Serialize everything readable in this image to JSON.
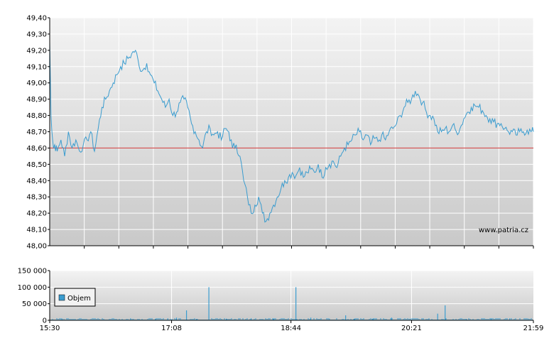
{
  "chart_data": [
    {
      "type": "line",
      "title": "",
      "xlabel": "",
      "ylabel": "",
      "ylim": [
        48.0,
        49.4
      ],
      "y_ticks": [
        "48,00",
        "48,10",
        "48,20",
        "48,30",
        "48,40",
        "48,50",
        "48,60",
        "48,70",
        "48,80",
        "48,90",
        "49,00",
        "49,10",
        "49,20",
        "49,30",
        "49,40"
      ],
      "x_ticks": [
        "15:30",
        "17:08",
        "18:44",
        "20:21",
        "21:59"
      ],
      "reference_line": {
        "value": 48.6,
        "color": "#cc3333"
      },
      "series": [
        {
          "color": "#3a9ccf",
          "x": [
            "15:30",
            "15:31",
            "15:33",
            "15:34",
            "15:36",
            "15:39",
            "15:42",
            "15:45",
            "15:48",
            "15:51",
            "15:54",
            "15:57",
            "16:00",
            "16:03",
            "16:06",
            "16:09",
            "16:12",
            "16:15",
            "16:18",
            "16:21",
            "16:24",
            "16:27",
            "16:30",
            "16:33",
            "16:36",
            "16:39",
            "16:42",
            "16:45",
            "16:48",
            "16:51",
            "16:54",
            "16:57",
            "17:00",
            "17:03",
            "17:06",
            "17:09",
            "17:12",
            "17:15",
            "17:18",
            "17:21",
            "17:24",
            "17:27",
            "17:30",
            "17:33",
            "17:36",
            "17:39",
            "17:42",
            "17:45",
            "17:48",
            "17:51",
            "17:54",
            "17:57",
            "18:00",
            "18:03",
            "18:06",
            "18:09",
            "18:12",
            "18:15",
            "18:18",
            "18:21",
            "18:24",
            "18:27",
            "18:30",
            "18:33",
            "18:36",
            "18:39",
            "18:42",
            "18:45",
            "18:48",
            "18:51",
            "18:54",
            "18:57",
            "19:00",
            "19:03",
            "19:06",
            "19:09",
            "19:12",
            "19:15",
            "19:18",
            "19:21",
            "19:24",
            "19:27",
            "19:30",
            "19:33",
            "19:36",
            "19:39",
            "19:42",
            "19:45",
            "19:48",
            "19:51",
            "19:54",
            "19:57",
            "20:00",
            "20:03",
            "20:06",
            "20:09",
            "20:12",
            "20:15",
            "20:18",
            "20:21",
            "20:24",
            "20:27",
            "20:30",
            "20:33",
            "20:36",
            "20:39",
            "20:42",
            "20:45",
            "20:48",
            "20:51",
            "20:54",
            "20:57",
            "21:00",
            "21:03",
            "21:06",
            "21:09",
            "21:12",
            "21:15",
            "21:18",
            "21:21",
            "21:24",
            "21:27",
            "21:30",
            "21:33",
            "21:36",
            "21:39",
            "21:42",
            "21:45",
            "21:48",
            "21:51",
            "21:54",
            "21:57",
            "21:59"
          ],
          "values": [
            49.25,
            48.8,
            48.6,
            48.62,
            48.58,
            48.65,
            48.55,
            48.7,
            48.6,
            48.65,
            48.58,
            48.62,
            48.65,
            48.7,
            48.58,
            48.72,
            48.85,
            48.9,
            48.95,
            49.0,
            49.05,
            49.1,
            49.12,
            49.15,
            49.18,
            49.2,
            49.1,
            49.08,
            49.12,
            49.05,
            49.0,
            48.95,
            48.9,
            48.85,
            48.9,
            48.8,
            48.82,
            48.88,
            48.9,
            48.85,
            48.75,
            48.7,
            48.65,
            48.6,
            48.7,
            48.72,
            48.68,
            48.7,
            48.65,
            48.72,
            48.7,
            48.6,
            48.62,
            48.55,
            48.4,
            48.3,
            48.2,
            48.25,
            48.3,
            48.2,
            48.15,
            48.2,
            48.25,
            48.3,
            48.35,
            48.4,
            48.42,
            48.45,
            48.43,
            48.48,
            48.42,
            48.45,
            48.47,
            48.45,
            48.5,
            48.42,
            48.48,
            48.5,
            48.52,
            48.48,
            48.55,
            48.6,
            48.62,
            48.65,
            48.68,
            48.7,
            48.65,
            48.68,
            48.62,
            48.66,
            48.64,
            48.68,
            48.65,
            48.7,
            48.72,
            48.75,
            48.8,
            48.85,
            48.88,
            48.9,
            48.95,
            48.92,
            48.88,
            48.82,
            48.8,
            48.78,
            48.7,
            48.7,
            48.72,
            48.7,
            48.74,
            48.7,
            48.72,
            48.78,
            48.82,
            48.85,
            48.86,
            48.85,
            48.83,
            48.8,
            48.78,
            48.76,
            48.75,
            48.75,
            48.72,
            48.7,
            48.7,
            48.68,
            48.7,
            48.7,
            48.71,
            48.7,
            48.7
          ]
        }
      ]
    },
    {
      "type": "bar",
      "title": "",
      "xlabel": "",
      "ylabel": "",
      "ylim": [
        0,
        150000
      ],
      "y_ticks": [
        "0",
        "50 000",
        "100 000",
        "150 000"
      ],
      "x_ticks": [
        "15:30",
        "17:08",
        "18:44",
        "20:21",
        "21:59"
      ],
      "series": [
        {
          "name": "Objem",
          "color": "#3a9ccf",
          "x": [
            "15:40",
            "16:35",
            "16:55",
            "17:05",
            "17:12",
            "17:20",
            "17:28",
            "17:38",
            "17:52",
            "18:12",
            "18:30",
            "18:48",
            "19:00",
            "19:15",
            "19:28",
            "19:35",
            "19:50",
            "20:05",
            "20:20",
            "20:35",
            "20:42",
            "20:48",
            "21:05",
            "21:25",
            "21:40",
            "21:55"
          ],
          "values": [
            5000,
            6000,
            4000,
            6000,
            8000,
            30000,
            4000,
            100000,
            5000,
            6000,
            4000,
            100000,
            8000,
            5000,
            15000,
            4000,
            5000,
            8000,
            5000,
            6000,
            20000,
            45000,
            4000,
            5000,
            6000,
            5000
          ]
        }
      ]
    }
  ],
  "watermark": "www.patria.cz",
  "legend_label": "Objem",
  "colors": {
    "price_line": "#3a9ccf",
    "reference_line": "#cc3333",
    "plot_top": "#f2f2f2",
    "plot_bottom": "#c8c8c8",
    "grid": "#ffffff"
  }
}
